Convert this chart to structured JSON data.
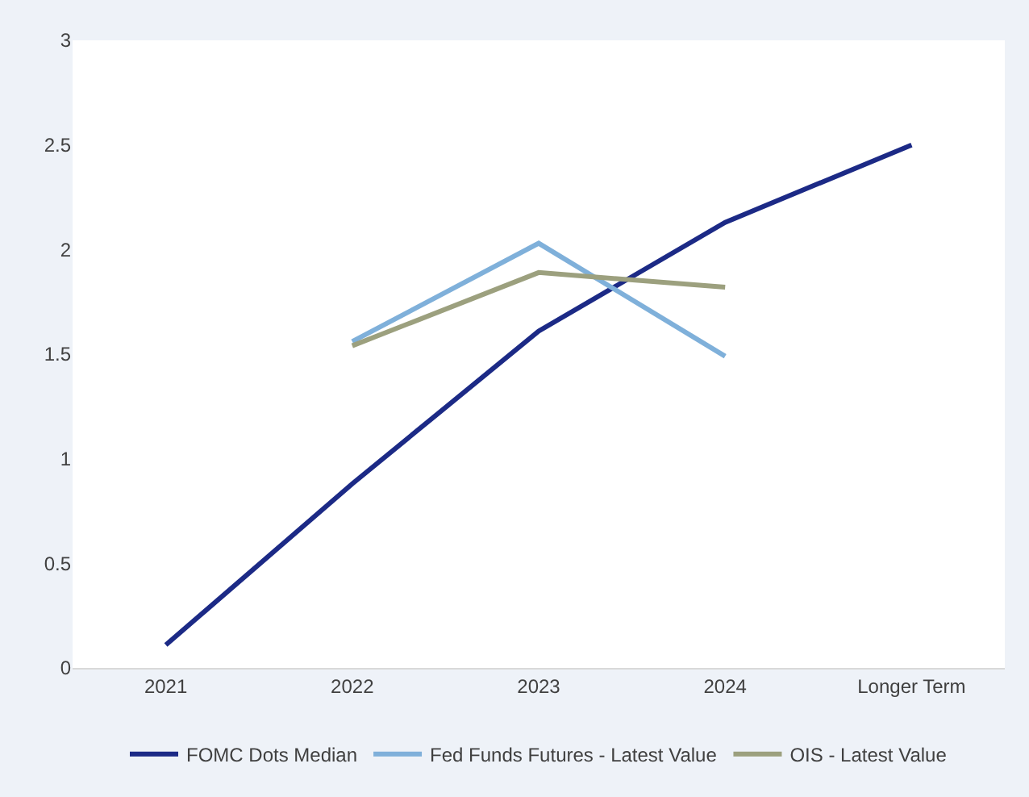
{
  "chart_data": {
    "type": "line",
    "categories": [
      "2021",
      "2022",
      "2023",
      "2024",
      "Longer Term"
    ],
    "series": [
      {
        "name": "FOMC Dots Median",
        "color": "#1c2a86",
        "values": [
          0.11,
          0.88,
          1.61,
          2.13,
          2.5
        ]
      },
      {
        "name": "Fed Funds Futures - Latest Value",
        "color": "#7fb0da",
        "values": [
          null,
          1.56,
          2.03,
          1.49,
          null
        ]
      },
      {
        "name": "OIS - Latest Value",
        "color": "#9ca07e",
        "values": [
          null,
          1.54,
          1.89,
          1.82,
          null
        ]
      }
    ],
    "ylim": [
      0,
      3
    ],
    "yticks": [
      0,
      0.5,
      1,
      1.5,
      2,
      2.5,
      3
    ],
    "legend": "bottom",
    "marker": "none",
    "line_style": "solid"
  }
}
